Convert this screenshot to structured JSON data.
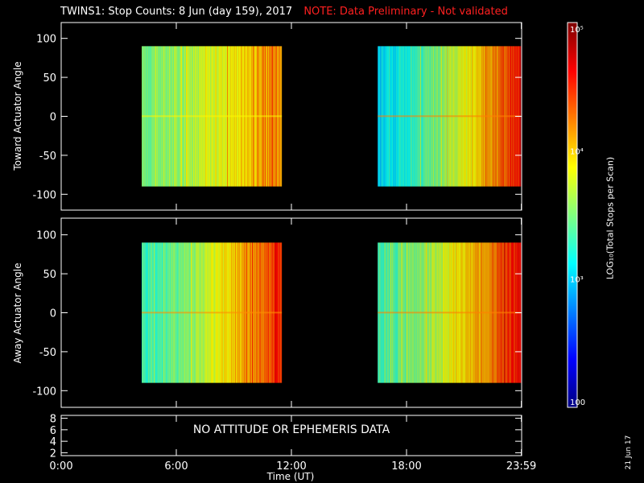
{
  "header": {
    "title": "TWINS1: Stop Counts:  8 Jun (day 159), 2017",
    "note": "NOTE: Data Preliminary - Not validated"
  },
  "chart_data": [
    {
      "type": "heatmap",
      "ylabel": "Toward Actuator Angle",
      "ylim": [
        -110,
        110
      ],
      "yticks": [
        100,
        50,
        0,
        -50,
        -100
      ],
      "xlim": [
        0,
        24
      ],
      "y_range": [
        -90,
        90
      ],
      "scan_blocks": [
        {
          "start_hour": 4.2,
          "end_hour": 11.5,
          "level_start": 3.5,
          "level_end": 4.25
        },
        {
          "start_hour": 16.5,
          "end_hour": 23.95,
          "level_start": 3.05,
          "level_end": 4.6
        }
      ]
    },
    {
      "type": "heatmap",
      "ylabel": "Away Actuator Angle",
      "ylim": [
        -110,
        110
      ],
      "yticks": [
        100,
        50,
        0,
        -50,
        -100
      ],
      "xlim": [
        0,
        24
      ],
      "y_range": [
        -90,
        90
      ],
      "scan_blocks": [
        {
          "start_hour": 4.2,
          "end_hour": 11.5,
          "level_start": 3.3,
          "level_end": 4.55
        },
        {
          "start_hour": 16.5,
          "end_hour": 23.95,
          "level_start": 3.35,
          "level_end": 4.6
        }
      ]
    },
    {
      "type": "line",
      "yticks": [
        8,
        6,
        4,
        2
      ],
      "ylim": [
        1.5,
        8.5
      ],
      "annotation": "NO ATTITUDE OR EPHEMERIS DATA",
      "series": []
    }
  ],
  "xaxis": {
    "label": "Time (UT)",
    "tick_hours": [
      0,
      6,
      12,
      18,
      23.983
    ],
    "tick_labels": [
      "0:00",
      "6:00",
      "12:00",
      "18:00",
      "23:59"
    ]
  },
  "colorbar": {
    "label": "LOG₁₀(Total Stops per Scan)",
    "range_log": [
      2,
      5
    ],
    "ticks": [
      {
        "log": 5,
        "label": "10⁵"
      },
      {
        "log": 4,
        "label": "10⁴"
      },
      {
        "log": 3,
        "label": "10³"
      },
      {
        "log": 2,
        "label": "100"
      }
    ]
  },
  "datestamp": "21 Jun 17"
}
